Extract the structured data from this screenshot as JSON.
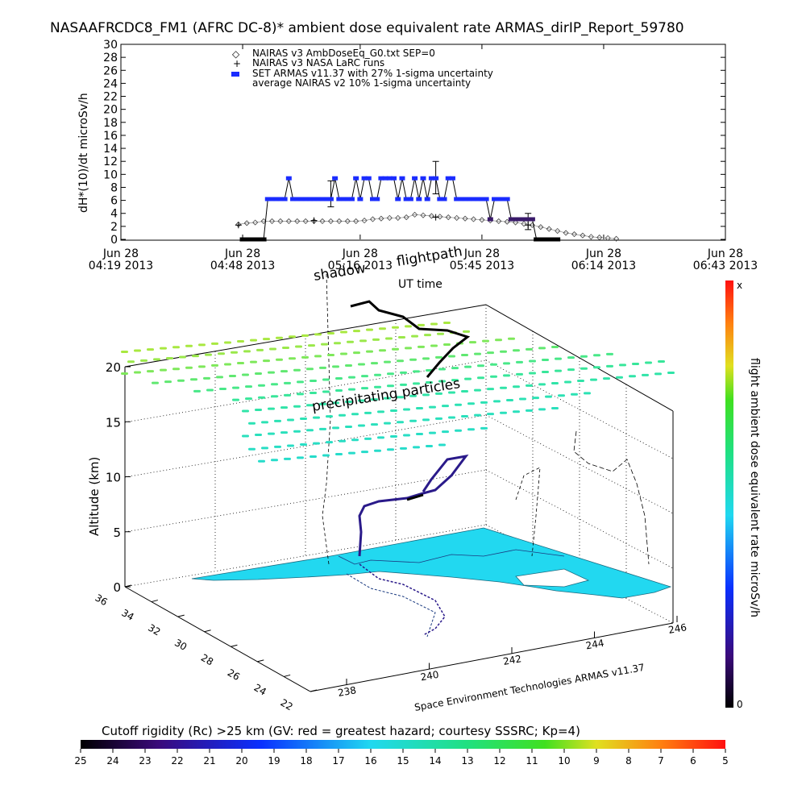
{
  "title": "NASAAFRCDC8_FM1 (AFRC DC-8)* ambient dose equivalent rate ARMAS_dirIP_Report_59780",
  "chart_data": [
    {
      "type": "line",
      "ylabel": "dH*(10)/dt microSv/h",
      "xlabel": "UT time",
      "ylim": [
        0,
        30
      ],
      "yticks": [
        "0",
        "2",
        "4",
        "6",
        "8",
        "10",
        "12",
        "14",
        "16",
        "18",
        "20",
        "22",
        "24",
        "26",
        "28",
        "30"
      ],
      "xlim": [
        "04:19",
        "06:43"
      ],
      "xticks": [
        {
          "line1": "Jun 28",
          "line2": "04:19 2013",
          "t": "04:19"
        },
        {
          "line1": "Jun 28",
          "line2": "04:48 2013",
          "t": "04:48"
        },
        {
          "line1": "Jun 28",
          "line2": "05:16 2013",
          "t": "05:16"
        },
        {
          "line1": "Jun 28",
          "line2": "05:45 2013",
          "t": "05:45"
        },
        {
          "line1": "Jun 28",
          "line2": "06:14 2013",
          "t": "06:14"
        },
        {
          "line1": "Jun 28",
          "line2": "06:43 2013",
          "t": "06:43"
        }
      ],
      "legend": [
        {
          "symbol": "◇",
          "label": "NAIRAS v3 AmbDoseEq_G0.txt SEP=0"
        },
        {
          "symbol": "+",
          "label": "NAIRAS v3 NASA LaRC runs"
        },
        {
          "symbol": "■",
          "label": "SET ARMAS v11.37 with 27% 1-sigma uncertainty",
          "color": "#1a2cff"
        },
        {
          "symbol": "",
          "label": "average NAIRAS v2 10% 1-sigma uncertainty"
        }
      ],
      "series": [
        {
          "name": "SET ARMAS v11.37 with 27% 1-sigma uncertainty",
          "color": "#1a2cff",
          "points": [
            [
              "04:48",
              0
            ],
            [
              "04:49",
              0
            ],
            [
              "04:50",
              0
            ],
            [
              "04:51",
              0
            ],
            [
              "04:52",
              0
            ],
            [
              "04:53",
              0
            ],
            [
              "04:54",
              6.2
            ],
            [
              "04:55",
              6.2
            ],
            [
              "04:56",
              6.2
            ],
            [
              "04:57",
              6.2
            ],
            [
              "04:58",
              6.2
            ],
            [
              "04:59",
              9.4
            ],
            [
              "05:00",
              6.2
            ],
            [
              "05:01",
              6.2
            ],
            [
              "05:02",
              6.2
            ],
            [
              "05:03",
              6.2
            ],
            [
              "05:04",
              6.2
            ],
            [
              "05:05",
              6.2
            ],
            [
              "05:06",
              6.2
            ],
            [
              "05:07",
              6.2
            ],
            [
              "05:08",
              6.2
            ],
            [
              "05:09",
              6.2
            ],
            [
              "05:10",
              9.4
            ],
            [
              "05:11",
              6.2
            ],
            [
              "05:12",
              6.2
            ],
            [
              "05:13",
              6.2
            ],
            [
              "05:14",
              6.2
            ],
            [
              "05:15",
              9.4
            ],
            [
              "05:16",
              6.2
            ],
            [
              "05:17",
              9.4
            ],
            [
              "05:18",
              9.4
            ],
            [
              "05:19",
              6.2
            ],
            [
              "05:20",
              6.2
            ],
            [
              "05:21",
              9.4
            ],
            [
              "05:22",
              9.4
            ],
            [
              "05:23",
              9.4
            ],
            [
              "05:24",
              9.4
            ],
            [
              "05:25",
              6.2
            ],
            [
              "05:26",
              9.4
            ],
            [
              "05:27",
              6.2
            ],
            [
              "05:28",
              6.2
            ],
            [
              "05:29",
              9.4
            ],
            [
              "05:30",
              6.2
            ],
            [
              "05:31",
              9.4
            ],
            [
              "05:32",
              6.2
            ],
            [
              "05:33",
              9.4
            ],
            [
              "05:34",
              9.4
            ],
            [
              "05:35",
              6.2
            ],
            [
              "05:36",
              6.2
            ],
            [
              "05:37",
              9.4
            ],
            [
              "05:38",
              9.4
            ],
            [
              "05:39",
              6.2
            ],
            [
              "05:40",
              6.2
            ],
            [
              "05:41",
              6.2
            ],
            [
              "05:42",
              6.2
            ],
            [
              "05:43",
              6.2
            ],
            [
              "05:44",
              6.2
            ],
            [
              "05:45",
              6.2
            ],
            [
              "05:46",
              6.2
            ],
            [
              "05:47",
              3.1
            ],
            [
              "05:48",
              6.2
            ],
            [
              "05:49",
              6.2
            ],
            [
              "05:50",
              6.2
            ],
            [
              "05:51",
              6.2
            ],
            [
              "05:52",
              3.1
            ],
            [
              "05:53",
              3.1
            ],
            [
              "05:54",
              3.1
            ],
            [
              "05:55",
              3.1
            ],
            [
              "05:56",
              3.1
            ],
            [
              "05:57",
              3.1
            ],
            [
              "05:58",
              0
            ],
            [
              "05:59",
              0
            ],
            [
              "06:00",
              0
            ],
            [
              "06:01",
              0
            ],
            [
              "06:02",
              0
            ],
            [
              "06:03",
              0
            ]
          ]
        },
        {
          "name": "NAIRAS v3 AmbDoseEq_G0.txt SEP=0",
          "color": "#555555",
          "points": [
            [
              "04:47",
              2.3
            ],
            [
              "04:49",
              2.5
            ],
            [
              "04:51",
              2.6
            ],
            [
              "04:53",
              2.8
            ],
            [
              "04:55",
              2.8
            ],
            [
              "04:57",
              2.8
            ],
            [
              "04:59",
              2.8
            ],
            [
              "05:01",
              2.8
            ],
            [
              "05:03",
              2.8
            ],
            [
              "05:05",
              2.8
            ],
            [
              "05:07",
              2.8
            ],
            [
              "05:09",
              2.8
            ],
            [
              "05:11",
              2.8
            ],
            [
              "05:13",
              2.8
            ],
            [
              "05:15",
              2.8
            ],
            [
              "05:17",
              2.9
            ],
            [
              "05:19",
              3.1
            ],
            [
              "05:21",
              3.2
            ],
            [
              "05:23",
              3.3
            ],
            [
              "05:25",
              3.3
            ],
            [
              "05:27",
              3.4
            ],
            [
              "05:29",
              3.8
            ],
            [
              "05:31",
              3.7
            ],
            [
              "05:33",
              3.6
            ],
            [
              "05:35",
              3.5
            ],
            [
              "05:37",
              3.4
            ],
            [
              "05:39",
              3.3
            ],
            [
              "05:41",
              3.2
            ],
            [
              "05:43",
              3.1
            ],
            [
              "05:45",
              3.0
            ],
            [
              "05:47",
              2.9
            ],
            [
              "05:49",
              2.8
            ],
            [
              "05:51",
              2.7
            ],
            [
              "05:53",
              2.6
            ],
            [
              "05:55",
              2.4
            ],
            [
              "05:57",
              2.2
            ],
            [
              "05:59",
              1.9
            ],
            [
              "06:01",
              1.6
            ],
            [
              "06:03",
              1.3
            ],
            [
              "06:05",
              1.0
            ],
            [
              "06:07",
              0.8
            ],
            [
              "06:09",
              0.6
            ],
            [
              "06:11",
              0.4
            ],
            [
              "06:13",
              0.3
            ],
            [
              "06:15",
              0.2
            ],
            [
              "06:17",
              0.1
            ]
          ]
        },
        {
          "name": "NAIRAS v3 NASA LaRC runs",
          "color": "#000000",
          "points": [
            [
              "04:47",
              2.2
            ],
            [
              "05:05",
              2.9
            ],
            [
              "05:34",
              3.4
            ],
            [
              "05:56",
              2.2
            ]
          ],
          "error_bars": [
            {
              "t": "05:09",
              "low": 5.0,
              "high": 9.0
            },
            {
              "t": "05:34",
              "low": 7.0,
              "high": 12.0
            },
            {
              "t": "05:56",
              "low": 1.5,
              "high": 4.0
            }
          ]
        }
      ]
    },
    {
      "type": "scatter",
      "ylabel": "Altitude (km)",
      "zticks": [
        "0",
        "5",
        "10",
        "15",
        "20"
      ],
      "xticks_lon": [
        "238",
        "240",
        "242",
        "244",
        "246"
      ],
      "yticks_lat": [
        "36",
        "34",
        "32",
        "30",
        "28",
        "26",
        "24",
        "22"
      ],
      "annotations": [
        "flightpath",
        "shadow",
        "precipitating particles"
      ],
      "credit": "Space Environment Technologies ARMAS v11.37",
      "colorbar_label": "flight ambient dose equivalent rate microSv/h",
      "colorbar_top": "x",
      "colorbar_bottom": "0"
    }
  ],
  "bottom_colorbar": {
    "label": "Cutoff rigidity (Rc) >25 km (GV: red = greatest hazard; courtesy SSSRC; Kp=4)",
    "ticks": [
      "25",
      "24",
      "23",
      "22",
      "21",
      "20",
      "19",
      "18",
      "17",
      "16",
      "15",
      "14",
      "13",
      "12",
      "11",
      "10",
      "9",
      "8",
      "7",
      "6",
      "5"
    ]
  }
}
